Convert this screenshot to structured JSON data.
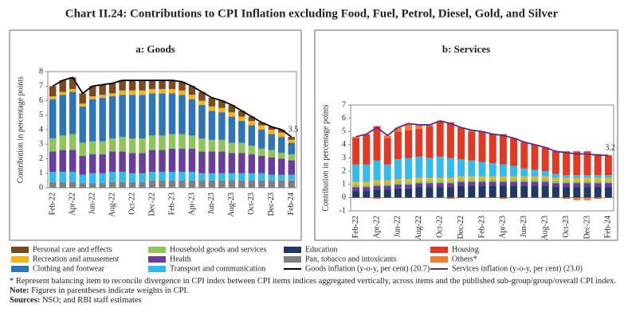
{
  "title": "Chart II.24: Contributions to CPI Inflation excluding Food, Fuel, Petrol, Diesel, Gold, and Silver",
  "chart_data": [
    {
      "type": "bar",
      "title": "a: Goods",
      "y_label": "Contribution in percentage points",
      "categories": [
        "Feb-22",
        null,
        "Apr-22",
        null,
        "Jun-22",
        null,
        "Aug-22",
        null,
        "Oct-22",
        null,
        "Dec-22",
        null,
        "Feb-23",
        null,
        "Apr-23",
        null,
        "Jun-23",
        null,
        "Aug-23",
        null,
        "Oct-23",
        null,
        "Dec-23",
        null,
        "Feb-24"
      ],
      "ylim": [
        0,
        8
      ],
      "yticks": [
        0,
        1,
        2,
        3,
        4,
        5,
        6,
        7,
        8
      ],
      "series": [
        {
          "name": "Pan, tobacco and intoxicants",
          "color": "#7f7f7f",
          "values": [
            0.4,
            0.4,
            0.4,
            0.3,
            0.3,
            0.3,
            0.4,
            0.4,
            0.4,
            0.4,
            0.5,
            0.5,
            0.5,
            0.5,
            0.5,
            0.5,
            0.5,
            0.5,
            0.5,
            0.5,
            0.5,
            0.5,
            0.5,
            0.5,
            0.5
          ]
        },
        {
          "name": "Transport and communication",
          "color": "#33bbee",
          "values": [
            0.7,
            0.7,
            0.7,
            0.6,
            0.7,
            0.7,
            0.7,
            0.7,
            0.6,
            0.6,
            0.6,
            0.6,
            0.6,
            0.6,
            0.6,
            0.5,
            0.5,
            0.5,
            0.5,
            0.5,
            0.5,
            0.5,
            0.4,
            0.4,
            0.4
          ]
        },
        {
          "name": "Health",
          "color": "#6a3d9a",
          "values": [
            1.4,
            1.5,
            1.5,
            1.3,
            1.3,
            1.3,
            1.4,
            1.4,
            1.4,
            1.4,
            1.5,
            1.5,
            1.6,
            1.6,
            1.6,
            1.5,
            1.5,
            1.5,
            1.4,
            1.4,
            1.3,
            1.2,
            1.2,
            1.1,
            1.0
          ]
        },
        {
          "name": "Household goods and services",
          "color": "#8fc45a",
          "values": [
            0.9,
            1.0,
            1.1,
            0.9,
            0.9,
            0.9,
            0.9,
            1.0,
            1.0,
            1.0,
            1.0,
            1.0,
            1.0,
            1.0,
            0.9,
            0.9,
            0.8,
            0.8,
            0.7,
            0.7,
            0.6,
            0.5,
            0.5,
            0.4,
            0.4
          ]
        },
        {
          "name": "Clothing and footwear",
          "color": "#2e75b6",
          "values": [
            2.7,
            2.8,
            2.9,
            2.5,
            2.9,
            3.0,
            2.9,
            2.9,
            3.0,
            3.0,
            2.9,
            2.9,
            2.8,
            2.7,
            2.5,
            2.3,
            2.0,
            1.9,
            1.8,
            1.5,
            1.4,
            1.3,
            1.1,
            1.1,
            0.8
          ]
        },
        {
          "name": "Recreation and amusement",
          "color": "#f5b21c",
          "values": [
            0.2,
            0.2,
            0.2,
            0.2,
            0.2,
            0.2,
            0.2,
            0.3,
            0.3,
            0.3,
            0.3,
            0.3,
            0.3,
            0.3,
            0.3,
            0.3,
            0.3,
            0.3,
            0.3,
            0.3,
            0.3,
            0.3,
            0.3,
            0.3,
            0.2
          ]
        },
        {
          "name": "Personal care and effects",
          "color": "#7b4a1e",
          "values": [
            0.7,
            0.8,
            0.8,
            0.7,
            0.7,
            0.7,
            0.7,
            0.7,
            0.7,
            0.7,
            0.6,
            0.6,
            0.6,
            0.6,
            0.6,
            0.6,
            0.6,
            0.5,
            0.5,
            0.4,
            0.3,
            0.2,
            0.2,
            0.2,
            0.2
          ]
        },
        {
          "name": "Goods inflation (y-o-y, per cent) (20.7)",
          "type": "line",
          "color": "#000000",
          "values": [
            7.0,
            7.4,
            7.6,
            6.5,
            7.0,
            7.1,
            7.2,
            7.4,
            7.4,
            7.4,
            7.4,
            7.4,
            7.4,
            7.3,
            7.0,
            6.6,
            6.2,
            6.0,
            5.7,
            5.3,
            4.9,
            4.5,
            4.2,
            4.0,
            3.5
          ]
        }
      ]
    },
    {
      "type": "bar",
      "title": "b: Services",
      "y_label": "Contribution in percentage points",
      "categories": [
        "Feb-22",
        null,
        "Apr-22",
        null,
        "Jun-22",
        null,
        "Aug-22",
        null,
        "Oct-22",
        null,
        "Dec-22",
        null,
        "Feb-23",
        null,
        "Apr-23",
        null,
        "Jun-23",
        null,
        "Aug-23",
        null,
        "Oct-23",
        null,
        "Dec-23",
        null,
        "Feb-24"
      ],
      "ylim": [
        -1,
        7
      ],
      "yticks": [
        -1,
        0,
        1,
        2,
        3,
        4,
        5,
        6,
        7
      ],
      "series": [
        {
          "name": "Education",
          "color": "#1f3864",
          "values": [
            0.5,
            0.5,
            0.6,
            0.6,
            0.7,
            0.7,
            0.8,
            0.8,
            0.8,
            0.8,
            0.9,
            0.9,
            0.9,
            0.9,
            0.9,
            0.9,
            0.9,
            0.9,
            0.9,
            0.8,
            0.8,
            0.8,
            0.8,
            0.8,
            0.8
          ]
        },
        {
          "color": "#6a3d9a",
          "values": [
            0.3,
            0.3,
            0.3,
            0.3,
            0.3,
            0.3,
            0.3,
            0.3,
            0.3,
            0.3,
            0.3,
            0.3,
            0.3,
            0.3,
            0.3,
            0.3,
            0.3,
            0.3,
            0.3,
            0.3,
            0.3,
            0.3,
            0.3,
            0.3,
            0.3
          ]
        },
        {
          "color": "#8fc45a",
          "values": [
            0.2,
            0.2,
            0.2,
            0.2,
            0.2,
            0.2,
            0.2,
            0.2,
            0.2,
            0.2,
            0.2,
            0.2,
            0.2,
            0.2,
            0.2,
            0.2,
            0.2,
            0.2,
            0.2,
            0.2,
            0.2,
            0.2,
            0.2,
            0.2,
            0.2
          ]
        },
        {
          "color": "#f5b21c",
          "values": [
            0.2,
            0.2,
            0.2,
            0.2,
            0.2,
            0.2,
            0.2,
            0.2,
            0.2,
            0.2,
            0.2,
            0.2,
            0.2,
            0.2,
            0.2,
            0.2,
            0.2,
            0.2,
            0.2,
            0.2,
            0.2,
            0.2,
            0.2,
            0.2,
            0.2
          ]
        },
        {
          "color": "#33bbee",
          "values": [
            1.3,
            1.3,
            1.5,
            1.2,
            1.5,
            1.6,
            1.6,
            1.5,
            1.6,
            1.5,
            1.3,
            1.2,
            1.1,
            1.0,
            0.9,
            0.8,
            0.6,
            0.5,
            0.4,
            0.3,
            0.2,
            0.2,
            0.2,
            0.2,
            0.2
          ]
        },
        {
          "name": "Housing",
          "color": "#e03a25",
          "values": [
            2.0,
            2.3,
            2.6,
            2.0,
            2.1,
            2.1,
            2.1,
            2.4,
            2.7,
            2.7,
            2.4,
            2.2,
            2.3,
            2.2,
            2.3,
            2.1,
            2.0,
            1.9,
            1.8,
            1.7,
            1.8,
            1.8,
            1.8,
            1.6,
            1.5
          ]
        },
        {
          "name": "Others*",
          "color": "#ed7d31",
          "values": [
            0.1,
            0.0,
            -0.1,
            0.2,
            0.3,
            0.5,
            0.3,
            0.1,
            0.0,
            -0.1,
            0.0,
            0.1,
            0.0,
            0.0,
            -0.1,
            0.0,
            0.0,
            0.0,
            0.0,
            0.0,
            -0.1,
            -0.2,
            -0.2,
            -0.1,
            0.0
          ]
        },
        {
          "name": "Services inflation (y-o-y, per cent) (23.0)",
          "type": "line",
          "color": "#5b2c8f",
          "values": [
            4.6,
            4.8,
            5.3,
            4.7,
            5.3,
            5.6,
            5.5,
            5.5,
            5.8,
            5.6,
            5.3,
            5.1,
            5.0,
            4.8,
            4.7,
            4.5,
            4.2,
            4.0,
            3.8,
            3.5,
            3.4,
            3.3,
            3.3,
            3.2,
            3.2
          ]
        }
      ]
    }
  ],
  "footnotes": {
    "asterisk": "* Represent balancing item to reconcile divergence in CPI index between CPI items indices aggregated vertically, across items and the published sub-group/group/overall CPI index.",
    "note": {
      "label": "Note:",
      "text": "Figures in parentheses indicate weights in CPI."
    },
    "sources": {
      "label": "Sources:",
      "text": "NSO; and RBI staff estimates"
    }
  }
}
